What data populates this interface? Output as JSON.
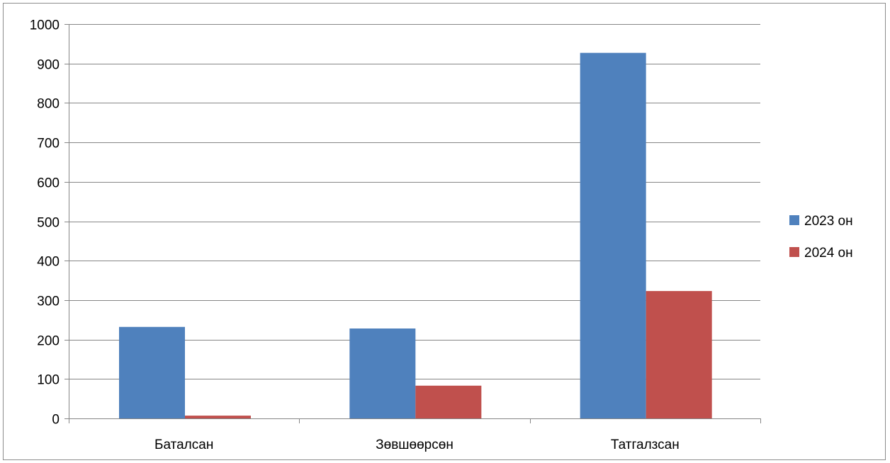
{
  "chart_data": {
    "type": "bar",
    "title": "",
    "xlabel": "",
    "ylabel": "",
    "categories": [
      "Баталсан",
      "Зөвшөөрсөн",
      "Татгалзсан"
    ],
    "series": [
      {
        "name": "2023 он",
        "color": "#4f81bd",
        "values": [
          232,
          228,
          927
        ]
      },
      {
        "name": "2024 он",
        "color": "#c0504d",
        "values": [
          7,
          83,
          323
        ]
      }
    ],
    "ylim": [
      0,
      1000
    ],
    "yticks": [
      0,
      100,
      200,
      300,
      400,
      500,
      600,
      700,
      800,
      900,
      1000
    ],
    "grid": true,
    "legend_position": "right"
  }
}
